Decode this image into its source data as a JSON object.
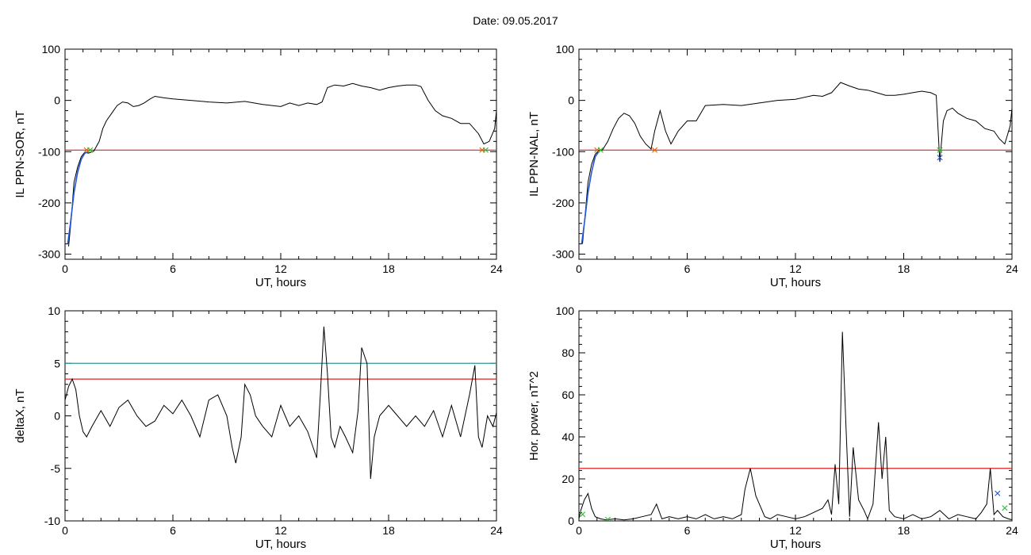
{
  "title": "Date:  09.05.2017",
  "chart_data": [
    {
      "type": "line",
      "ylabel": "IL PPN-SOR, nT",
      "xlabel": "UT, hours",
      "xlim": [
        0,
        24
      ],
      "ylim": [
        -310,
        100
      ],
      "xticks": [
        0,
        6,
        12,
        18,
        24
      ],
      "yticks": [
        -300,
        -200,
        -100,
        0,
        100
      ],
      "hlines": [
        {
          "value": -97,
          "color": "#dd2222"
        }
      ],
      "series": [
        {
          "color": "#000000",
          "x": [
            0.2,
            0.35,
            0.5,
            0.7,
            0.9,
            1.1,
            1.3,
            1.6,
            1.9,
            2.1,
            2.3,
            2.6,
            2.9,
            3.2,
            3.5,
            3.8,
            4.1,
            4.4,
            4.7,
            5.0,
            5.5,
            6,
            7,
            8,
            9,
            10,
            11,
            12,
            12.5,
            13,
            13.5,
            14,
            14.3,
            14.6,
            15,
            15.5,
            16,
            16.5,
            17,
            17.5,
            18,
            18.5,
            19,
            19.5,
            19.8,
            20.2,
            20.6,
            21,
            21.5,
            22,
            22.5,
            23,
            23.3,
            23.6,
            23.9,
            24
          ],
          "y": [
            -285,
            -230,
            -160,
            -130,
            -110,
            -101,
            -103,
            -99,
            -80,
            -55,
            -40,
            -25,
            -10,
            -3,
            -5,
            -12,
            -10,
            -5,
            2,
            8,
            5,
            3,
            0,
            -3,
            -5,
            -2,
            -8,
            -12,
            -5,
            -10,
            -5,
            -8,
            -3,
            25,
            30,
            28,
            33,
            28,
            25,
            20,
            25,
            28,
            30,
            30,
            27,
            0,
            -20,
            -30,
            -35,
            -45,
            -45,
            -65,
            -85,
            -80,
            -55,
            -20
          ]
        },
        {
          "color": "#2255dd",
          "x": [
            0.15,
            0.3,
            0.5,
            0.7,
            0.9,
            1.1,
            1.3
          ],
          "y": [
            -280,
            -240,
            -180,
            -140,
            -115,
            -103,
            -100
          ]
        }
      ],
      "markers": [
        {
          "x": 1.2,
          "y": -97,
          "color": "#dd6611",
          "symbol": "×"
        },
        {
          "x": 1.4,
          "y": -97,
          "color": "#33bb33",
          "symbol": "×"
        },
        {
          "x": 23.2,
          "y": -97,
          "color": "#dd6611",
          "symbol": "×"
        },
        {
          "x": 23.4,
          "y": -97,
          "color": "#33bb33",
          "symbol": "×"
        }
      ]
    },
    {
      "type": "line",
      "ylabel": "IL PPN-NAL, nT",
      "xlabel": "UT, hours",
      "xlim": [
        0,
        24
      ],
      "ylim": [
        -310,
        100
      ],
      "xticks": [
        0,
        6,
        12,
        18,
        24
      ],
      "yticks": [
        -300,
        -200,
        -100,
        0,
        100
      ],
      "hlines": [
        {
          "value": -97,
          "color": "#dd2222"
        }
      ],
      "series": [
        {
          "color": "#000000",
          "x": [
            0.2,
            0.35,
            0.5,
            0.7,
            0.9,
            1.1,
            1.3,
            1.6,
            1.9,
            2.2,
            2.5,
            2.8,
            3.1,
            3.4,
            3.7,
            4.0,
            4.2,
            4.5,
            4.8,
            5.1,
            5.5,
            6,
            6.5,
            7,
            8,
            9,
            10,
            11,
            12,
            13,
            13.5,
            14,
            14.5,
            15,
            15.5,
            16,
            16.5,
            17,
            17.5,
            18,
            18.5,
            19,
            19.5,
            19.8,
            20.0,
            20.2,
            20.4,
            20.7,
            21,
            21.5,
            22,
            22.5,
            23,
            23.3,
            23.6,
            23.9,
            24
          ],
          "y": [
            -280,
            -220,
            -160,
            -125,
            -105,
            -98,
            -97,
            -80,
            -55,
            -35,
            -25,
            -30,
            -45,
            -70,
            -85,
            -95,
            -60,
            -20,
            -60,
            -85,
            -60,
            -40,
            -40,
            -10,
            -8,
            -10,
            -5,
            0,
            2,
            10,
            8,
            15,
            35,
            28,
            22,
            20,
            15,
            10,
            10,
            12,
            15,
            18,
            15,
            10,
            -120,
            -40,
            -20,
            -15,
            -25,
            -35,
            -40,
            -55,
            -60,
            -75,
            -85,
            -50,
            -15
          ]
        },
        {
          "color": "#2255dd",
          "x": [
            0.15,
            0.3,
            0.5,
            0.7,
            0.9,
            1.1
          ],
          "y": [
            -280,
            -240,
            -180,
            -140,
            -110,
            -100
          ]
        }
      ],
      "markers": [
        {
          "x": 1.0,
          "y": -97,
          "color": "#dd6611",
          "symbol": "×"
        },
        {
          "x": 1.2,
          "y": -97,
          "color": "#33bb33",
          "symbol": "×"
        },
        {
          "x": 4.2,
          "y": -97,
          "color": "#dd6611",
          "symbol": "×"
        },
        {
          "x": 20.0,
          "y": -97,
          "color": "#33bb33",
          "symbol": "×"
        },
        {
          "x": 20.0,
          "y": -112,
          "color": "#2255dd",
          "symbol": "×"
        }
      ]
    },
    {
      "type": "line",
      "ylabel": "deltaX, nT",
      "xlabel": "UT, hours",
      "xlim": [
        0,
        24
      ],
      "ylim": [
        -10,
        10
      ],
      "xticks": [
        0,
        6,
        12,
        18,
        24
      ],
      "yticks": [
        -10,
        -5,
        0,
        5,
        10
      ],
      "hlines": [
        {
          "value": 5,
          "color": "#2a9a9a"
        },
        {
          "value": 3.5,
          "color": "#dd2222"
        }
      ],
      "series": [
        {
          "color": "#000000",
          "x": [
            0,
            0.2,
            0.4,
            0.6,
            0.8,
            1.0,
            1.2,
            1.5,
            2,
            2.5,
            3,
            3.5,
            4,
            4.5,
            5,
            5.5,
            6,
            6.5,
            7,
            7.5,
            8,
            8.5,
            9,
            9.3,
            9.5,
            9.8,
            10,
            10.3,
            10.6,
            11,
            11.5,
            12,
            12.5,
            13,
            13.5,
            14,
            14.2,
            14.4,
            14.6,
            14.8,
            15,
            15.3,
            15.6,
            16,
            16.3,
            16.5,
            16.8,
            17,
            17.2,
            17.5,
            18,
            18.5,
            19,
            19.5,
            20,
            20.5,
            21,
            21.5,
            22,
            22.5,
            22.8,
            23,
            23.2,
            23.5,
            23.8,
            24
          ],
          "y": [
            1.5,
            2.8,
            3.5,
            2.5,
            0,
            -1.5,
            -2,
            -1,
            0.5,
            -1,
            0.8,
            1.5,
            0,
            -1,
            -0.5,
            1,
            0.2,
            1.5,
            0,
            -2,
            1.5,
            2,
            0,
            -3,
            -4.5,
            -2,
            3,
            2,
            0,
            -1,
            -2,
            1,
            -1,
            0,
            -1.5,
            -4,
            2,
            8.5,
            4,
            -2,
            -3,
            -1,
            -2,
            -3.5,
            0.5,
            6.5,
            5,
            -6,
            -2,
            0,
            1,
            0,
            -1,
            0,
            -1,
            0.5,
            -2,
            1,
            -2,
            2,
            4.8,
            -2,
            -3,
            0,
            -1,
            0.3
          ]
        }
      ],
      "markers": []
    },
    {
      "type": "line",
      "ylabel": "Hor. power, nT^2",
      "xlabel": "UT, hours",
      "xlim": [
        0,
        24
      ],
      "ylim": [
        0,
        100
      ],
      "xticks": [
        0,
        6,
        12,
        18,
        24
      ],
      "yticks": [
        0,
        20,
        40,
        60,
        80,
        100
      ],
      "hlines": [
        {
          "value": 25,
          "color": "#dd2222"
        }
      ],
      "series": [
        {
          "color": "#000000",
          "x": [
            0,
            0.1,
            0.3,
            0.5,
            0.7,
            0.9,
            1.2,
            1.5,
            2,
            2.5,
            3,
            3.5,
            4,
            4.3,
            4.6,
            5,
            5.5,
            6,
            6.5,
            7,
            7.5,
            8,
            8.5,
            9,
            9.2,
            9.5,
            9.8,
            10,
            10.3,
            10.6,
            11,
            11.5,
            12,
            12.5,
            13,
            13.5,
            13.8,
            14,
            14.2,
            14.4,
            14.6,
            14.8,
            15,
            15.2,
            15.5,
            15.8,
            16,
            16.3,
            16.6,
            16.8,
            17,
            17.2,
            17.5,
            18,
            18.5,
            19,
            19.5,
            20,
            20.5,
            21,
            21.5,
            22,
            22.3,
            22.6,
            22.8,
            23,
            23.2,
            23.5,
            23.8,
            24
          ],
          "y": [
            1,
            5,
            10,
            13,
            6,
            2,
            1,
            0.5,
            1,
            0.5,
            1,
            2,
            3,
            8,
            1,
            2,
            1,
            2,
            1,
            3,
            1,
            2,
            1,
            3,
            15,
            25,
            12,
            8,
            2,
            1,
            3,
            2,
            1,
            2,
            4,
            6,
            10,
            3,
            27,
            8,
            90,
            45,
            2,
            35,
            10,
            5,
            1,
            8,
            47,
            20,
            40,
            5,
            2,
            1,
            3,
            1,
            2,
            5,
            1,
            3,
            2,
            1,
            4,
            8,
            25,
            3,
            5,
            2,
            1,
            0.5
          ]
        }
      ],
      "markers": [
        {
          "x": 0.2,
          "y": 3,
          "color": "#33bb33",
          "symbol": "×"
        },
        {
          "x": 1.6,
          "y": 0.5,
          "color": "#33bb33",
          "symbol": "×"
        },
        {
          "x": 23.2,
          "y": 13,
          "color": "#2255dd",
          "symbol": "×"
        },
        {
          "x": 23.6,
          "y": 6,
          "color": "#33bb33",
          "symbol": "×"
        }
      ]
    }
  ]
}
